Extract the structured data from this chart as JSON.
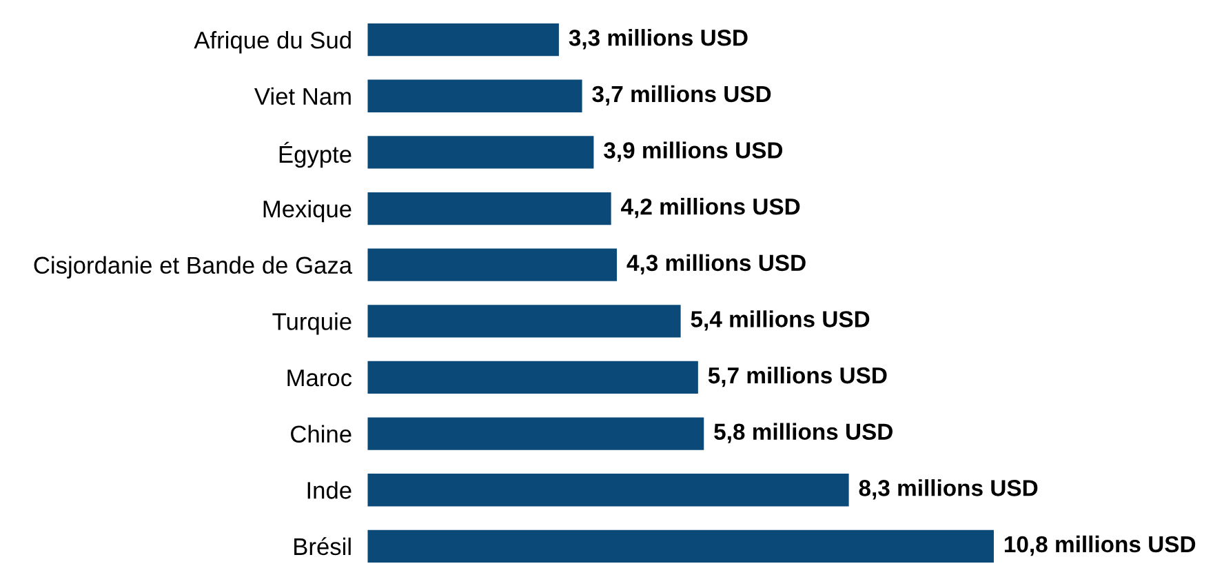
{
  "chart_data": {
    "type": "bar",
    "orientation": "horizontal",
    "tick_labels": "y",
    "grid": false,
    "legend": false,
    "categories": [
      "Afrique du Sud",
      "Viet Nam",
      "Égypte",
      "Mexique",
      "Cisjordanie et Bande de Gaza",
      "Turquie",
      "Maroc",
      "Chine",
      "Inde",
      "Brésil"
    ],
    "values": [
      3.3,
      3.7,
      3.9,
      4.2,
      4.3,
      5.4,
      5.7,
      5.8,
      8.3,
      10.8
    ],
    "value_labels": [
      "3,3 millions USD",
      "3,7 millions USD",
      "3,9 millions USD",
      "4,2 millions USD",
      "4,3 millions USD",
      "5,4 millions USD",
      "5,7 millions USD",
      "5,8 millions USD",
      "8,3 millions USD",
      "10,8 millions USD"
    ],
    "color": "#0b4a78"
  }
}
